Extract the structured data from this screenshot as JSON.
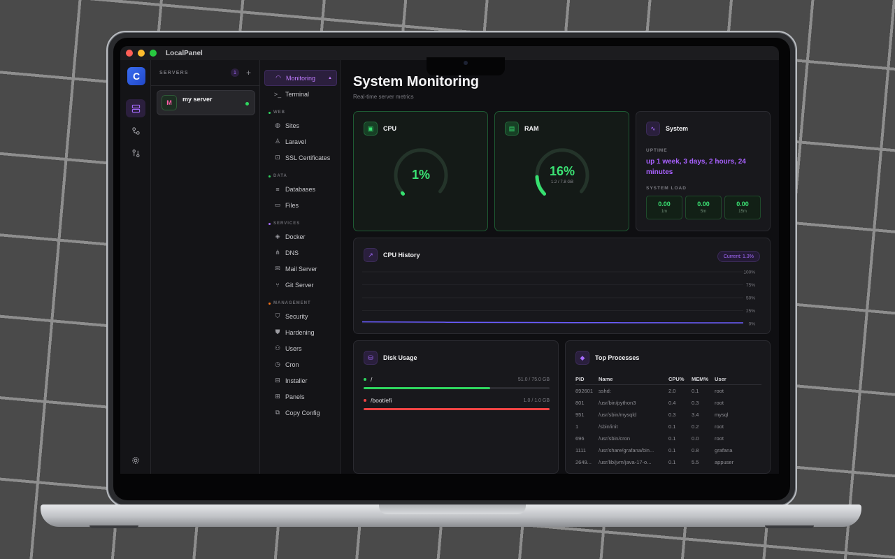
{
  "app": {
    "title": "LocalPanel",
    "logo_glyph": "C",
    "accent": "#a66bff",
    "success": "#3be374"
  },
  "servers": {
    "heading": "SERVERS",
    "count": "1",
    "add_glyph": "+",
    "items": [
      {
        "initial": "M",
        "name": "my server",
        "status": "online"
      }
    ]
  },
  "nav": {
    "monitoring": "Monitoring",
    "terminal": "Terminal",
    "sec_web": "WEB",
    "sites": "Sites",
    "laravel": "Laravel",
    "ssl": "SSL Certificates",
    "sec_data": "DATA",
    "databases": "Databases",
    "files": "Files",
    "sec_services": "SERVICES",
    "docker": "Docker",
    "dns": "DNS",
    "mail": "Mail Server",
    "git": "Git Server",
    "sec_management": "MANAGEMENT",
    "security": "Security",
    "hardening": "Hardening",
    "users": "Users",
    "cron": "Cron",
    "installer": "Installer",
    "panels": "Panels",
    "copy_config": "Copy Config"
  },
  "page": {
    "title": "System Monitoring",
    "subtitle": "Real-time server metrics"
  },
  "cpu": {
    "title": "CPU",
    "value": "1%",
    "percent": 1
  },
  "ram": {
    "title": "RAM",
    "value": "16%",
    "detail": "1.2 / 7.8 GB",
    "percent": 16
  },
  "system": {
    "title": "System",
    "uptime_label": "UPTIME",
    "uptime": "up 1 week, 3 days, 2 hours, 24 minutes",
    "load_label": "SYSTEM LOAD",
    "loads": [
      {
        "value": "0.00",
        "label": "1m"
      },
      {
        "value": "0.00",
        "label": "5m"
      },
      {
        "value": "0.00",
        "label": "15m"
      }
    ]
  },
  "cpu_history": {
    "title": "CPU History",
    "current": "Current: 1.3%",
    "axis_labels": [
      "100%",
      "75%",
      "50%",
      "25%",
      "0%"
    ]
  },
  "chart_data": {
    "type": "line",
    "title": "CPU History",
    "ylim": [
      0,
      100
    ],
    "yticks": [
      "100%",
      "75%",
      "50%",
      "25%",
      "0%"
    ],
    "series": [
      {
        "values": [
          3.2,
          2.8,
          2.5,
          2.2,
          2.0,
          1.8,
          1.6,
          1.5,
          1.4,
          1.3
        ]
      }
    ],
    "grid": true
  },
  "disk": {
    "title": "Disk Usage",
    "items": [
      {
        "mount": "/",
        "size": "51.0 / 75.0 GB",
        "fraction": 0.68,
        "color": "#2fd65f"
      },
      {
        "mount": "/boot/efi",
        "size": "1.0 / 1.0 GB",
        "fraction": 1.0,
        "color": "#ef4444"
      }
    ]
  },
  "processes": {
    "title": "Top Processes",
    "columns": [
      "PID",
      "Name",
      "CPU%",
      "MEM%",
      "User"
    ],
    "rows": [
      [
        "892601",
        "sshd:",
        "2.0",
        "0.1",
        "root"
      ],
      [
        "801",
        "/usr/bin/python3",
        "0.4",
        "0.3",
        "root"
      ],
      [
        "951",
        "/usr/sbin/mysqld",
        "0.3",
        "3.4",
        "mysql"
      ],
      [
        "1",
        "/sbin/init",
        "0.1",
        "0.2",
        "root"
      ],
      [
        "696",
        "/usr/sbin/cron",
        "0.1",
        "0.0",
        "root"
      ],
      [
        "1111",
        "/usr/share/grafana/bin...",
        "0.1",
        "0.8",
        "grafana"
      ],
      [
        "2649...",
        "/usr/lib/jvm/java-17-o...",
        "0.1",
        "5.5",
        "appuser"
      ]
    ]
  }
}
